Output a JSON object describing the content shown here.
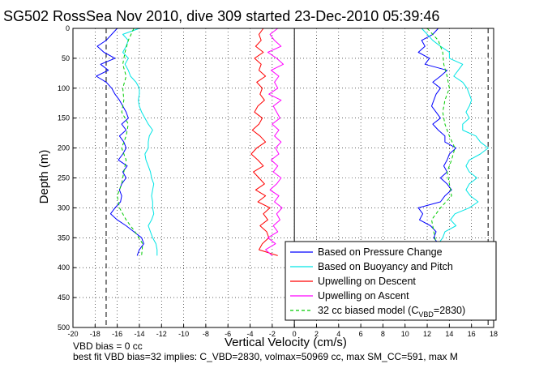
{
  "chart_data": {
    "type": "line",
    "title": "SG502 RossSea Nov 2010, dive 309 started 23-Dec-2010 05:39:46",
    "xlabel": "Vertical Velocity (cm/s)",
    "ylabel": "Depth (m)",
    "xlim": [
      -20,
      18
    ],
    "ylim": [
      0,
      500
    ],
    "y_reversed": true,
    "grid": true,
    "xticks": [
      -20,
      -18,
      -16,
      -14,
      -12,
      -10,
      -8,
      -6,
      -4,
      -2,
      0,
      2,
      4,
      6,
      8,
      10,
      12,
      14,
      16,
      18
    ],
    "yticks": [
      0,
      50,
      100,
      150,
      200,
      250,
      300,
      350,
      400,
      450,
      500
    ],
    "reference_lines_x": [
      -17,
      17.5
    ],
    "zero_line_x": 0,
    "legend_position": "bottom-right",
    "series": [
      {
        "name": "Based on Pressure Change",
        "color": "#0000ff",
        "style": "solid",
        "profiles": [
          {
            "depth": [
              0,
              10,
              20,
              30,
              40,
              50,
              60,
              70,
              80,
              90,
              100,
              110,
              120,
              130,
              140,
              150,
              160,
              170,
              180,
              190,
              200,
              210,
              220,
              230,
              240,
              250,
              260,
              270,
              280,
              290,
              300,
              310,
              320,
              330,
              340,
              350,
              360,
              370,
              380
            ],
            "value": [
              -16,
              -16.5,
              -17,
              -17.8,
              -17.2,
              -16.2,
              -17.5,
              -16.8,
              -17.9,
              -17,
              -16.5,
              -16.2,
              -15.8,
              -15.5,
              -15.2,
              -15,
              -15.6,
              -15.2,
              -15.8,
              -15.4,
              -15.2,
              -15.5,
              -15.9,
              -15.1,
              -15.5,
              -15.2,
              -15.6,
              -15.8,
              -15.6,
              -15.7,
              -16.2,
              -16.6,
              -16,
              -15.2,
              -14.5,
              -13.8,
              -13.6,
              -14,
              -14.2
            ]
          },
          {
            "depth": [
              0,
              10,
              20,
              30,
              40,
              50,
              60,
              70,
              80,
              90,
              100,
              110,
              120,
              130,
              140,
              150,
              160,
              170,
              180,
              190,
              200,
              210,
              220,
              230,
              240,
              250,
              260,
              270,
              280,
              290,
              300,
              310,
              320,
              330,
              340,
              350,
              360
            ],
            "value": [
              13,
              12.5,
              11.5,
              11.8,
              11.2,
              12.2,
              11.8,
              13.8,
              13.2,
              12.5,
              13.2,
              12.8,
              12.6,
              12.4,
              12.8,
              13.2,
              12.5,
              13,
              13.6,
              13.6,
              14.6,
              14,
              13.8,
              13.5,
              13.8,
              13.2,
              13.8,
              14.2,
              13.6,
              13.2,
              11.2,
              11.6,
              11.3,
              12.3,
              12.8,
              12.6,
              13
            ]
          }
        ]
      },
      {
        "name": "Based on Buoyancy and Pitch",
        "color": "#00e5e5",
        "style": "solid",
        "profiles": [
          {
            "depth": [
              0,
              10,
              20,
              30,
              40,
              50,
              60,
              70,
              80,
              90,
              100,
              110,
              120,
              130,
              140,
              150,
              160,
              170,
              180,
              190,
              200,
              210,
              220,
              230,
              240,
              250,
              260,
              270,
              280,
              290,
              300,
              310,
              320,
              330,
              340,
              350,
              360,
              370,
              380
            ],
            "value": [
              -14,
              -15.5,
              -15,
              -15.2,
              -15.5,
              -15,
              -15.3,
              -15,
              -14.8,
              -14.3,
              -14,
              -14,
              -14.1,
              -14,
              -13.8,
              -13.5,
              -13.2,
              -12.8,
              -13.1,
              -13.2,
              -13.2,
              -13.5,
              -13.4,
              -13.2,
              -13,
              -12.9,
              -12.7,
              -12.8,
              -12.9,
              -12.8,
              -12.8,
              -12.7,
              -12.9,
              -13.2,
              -13,
              -12.8,
              -12.5,
              -12.4,
              -12.4
            ]
          },
          {
            "depth": [
              0,
              10,
              20,
              30,
              40,
              50,
              60,
              70,
              80,
              90,
              100,
              110,
              120,
              130,
              140,
              150,
              160,
              170,
              180,
              190,
              200,
              210,
              220,
              230,
              240,
              250,
              260,
              270,
              280,
              290,
              300,
              310,
              320,
              330,
              340,
              350,
              360
            ],
            "value": [
              11.5,
              12,
              12.5,
              13.2,
              14,
              14,
              15.2,
              14.8,
              14.4,
              15.2,
              15.6,
              15.8,
              16,
              15.8,
              15.5,
              15.8,
              15.2,
              15.2,
              16.4,
              16.8,
              17.5,
              16.8,
              15.8,
              15.5,
              15.8,
              16.5,
              15.8,
              15.5,
              15.9,
              16.6,
              15.8,
              14.5,
              14.1,
              14.6,
              13.6,
              13.4,
              13
            ]
          }
        ]
      },
      {
        "name": "Upwelling on Descent",
        "color": "#ff0000",
        "style": "solid",
        "profiles": [
          {
            "depth": [
              0,
              10,
              20,
              30,
              40,
              50,
              60,
              70,
              80,
              90,
              100,
              110,
              120,
              130,
              140,
              150,
              160,
              170,
              180,
              190,
              200,
              210,
              220,
              230,
              240,
              250,
              260,
              270,
              280,
              290,
              300,
              310,
              320,
              330,
              340,
              350,
              360,
              370,
              380
            ],
            "value": [
              -2.8,
              -3.2,
              -3,
              -3.5,
              -2.8,
              -3.6,
              -3,
              -3.2,
              -2.6,
              -3.4,
              -2.9,
              -3.1,
              -2.7,
              -3.3,
              -3.6,
              -2.9,
              -3.2,
              -3.8,
              -3.1,
              -2.6,
              -3.4,
              -3.9,
              -3.3,
              -2.8,
              -3.7,
              -3.2,
              -2.7,
              -3.5,
              -2.6,
              -3.3,
              -2.2,
              -2.8,
              -2.4,
              -3.1,
              -2.5,
              -2.3,
              -2.9,
              -3.2,
              -1.5
            ]
          }
        ]
      },
      {
        "name": "Upwelling on Ascent",
        "color": "#ff00ff",
        "style": "solid",
        "profiles": [
          {
            "depth": [
              0,
              10,
              20,
              30,
              40,
              50,
              60,
              70,
              80,
              90,
              100,
              110,
              120,
              130,
              140,
              150,
              160,
              170,
              180,
              190,
              200,
              210,
              220,
              230,
              240,
              250,
              260,
              270,
              280,
              290,
              300,
              310,
              320,
              330,
              340,
              350,
              360,
              370,
              380
            ],
            "value": [
              -1.5,
              -2.2,
              -1.8,
              -1.2,
              -2.4,
              -1.6,
              -1,
              -2.1,
              -1.4,
              -1.8,
              -1.5,
              -2.3,
              -1.2,
              -1.9,
              -1.6,
              -1.3,
              -2,
              -1.4,
              -1.8,
              -1.2,
              -1.7,
              -1.4,
              -2.1,
              -1.5,
              -1.9,
              -1.2,
              -1.6,
              -2.2,
              -1.4,
              -1.8,
              -1.1,
              -1.6,
              -1.3,
              -1.9,
              -1.5,
              -2.4,
              -1.7,
              -2.6,
              -2
            ]
          }
        ]
      },
      {
        "name": "32 cc biased model (C_VBD=2830)",
        "color": "#00cc00",
        "style": "dashed",
        "profiles": [
          {
            "depth": [
              0,
              20,
              40,
              60,
              80,
              100,
              120,
              140,
              160,
              180,
              200,
              220,
              240,
              260,
              280,
              300,
              320,
              340,
              360,
              380
            ],
            "value": [
              -14.5,
              -15,
              -15.3,
              -15.5,
              -15.2,
              -15.5,
              -15.4,
              -15.6,
              -15,
              -15.2,
              -15.6,
              -15.2,
              -15.4,
              -15.6,
              -16,
              -15.8,
              -15.2,
              -14.4,
              -13.7,
              -13.8
            ]
          },
          {
            "depth": [
              0,
              20,
              40,
              60,
              80,
              100,
              120,
              140,
              160,
              180,
              200,
              220,
              240,
              260,
              280,
              300,
              320,
              340,
              360
            ],
            "value": [
              12,
              13,
              13.4,
              13.5,
              13.8,
              14,
              13.6,
              13.4,
              13.6,
              14,
              14.5,
              14.2,
              13.8,
              14,
              14.2,
              13.2,
              12.4,
              12.6,
              12.8
            ]
          }
        ]
      }
    ],
    "legend_label_main": "32 cc biased model (C",
    "legend_label_sub": "VBD",
    "legend_label_tail": "=2830)"
  },
  "footer": {
    "line1": "VBD bias = 0 cc",
    "line2": "best fit VBD bias=32 implies: C_VBD=2830, volmax=50969 cc, max SM_CC=591, max M"
  }
}
